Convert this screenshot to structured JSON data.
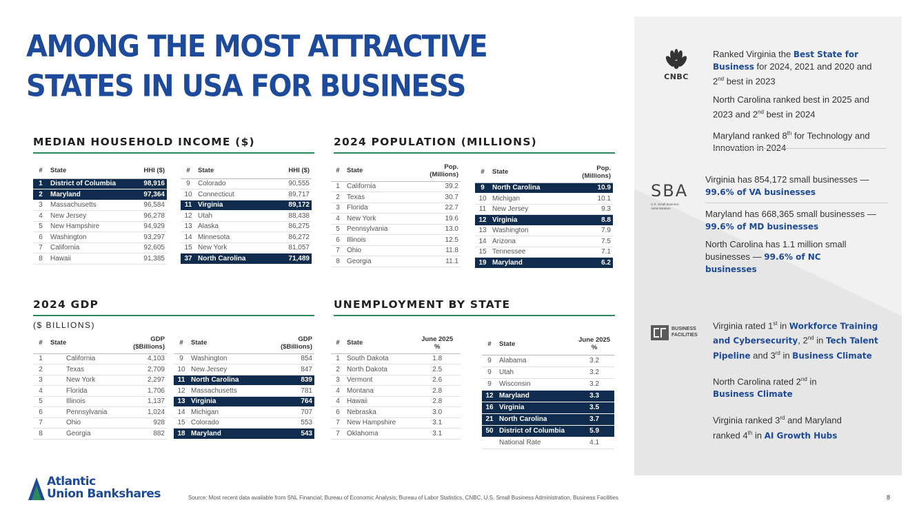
{
  "title": {
    "line1": "AMONG THE MOST ATTRACTIVE",
    "line2": "STATES IN USA FOR BUSINESS"
  },
  "sections": {
    "income": "MEDIAN HOUSEHOLD INCOME ($)",
    "population": "2024 POPULATION (MILLIONS)",
    "gdp": "2024 GDP",
    "gdp_sub": "($ BILLIONS)",
    "unemployment": "UNEMPLOYMENT BY STATE"
  },
  "income_headers": {
    "rank": "#",
    "state": "State",
    "value": "HHI ($)"
  },
  "income_left": [
    {
      "rank": "1",
      "state": "District of Columbia",
      "value": "98,916",
      "hl": true
    },
    {
      "rank": "2",
      "state": "Maryland",
      "value": "97,364",
      "hl": true
    },
    {
      "rank": "3",
      "state": "Massachusetts",
      "value": "96,584"
    },
    {
      "rank": "4",
      "state": "New Jersey",
      "value": "96,278"
    },
    {
      "rank": "5",
      "state": "New Hampshire",
      "value": "94,929"
    },
    {
      "rank": "6",
      "state": "Washington",
      "value": "93,297"
    },
    {
      "rank": "7",
      "state": "California",
      "value": "92,605"
    },
    {
      "rank": "8",
      "state": "Hawaii",
      "value": "91,385"
    }
  ],
  "income_right": [
    {
      "rank": "9",
      "state": "Colorado",
      "value": "90,555"
    },
    {
      "rank": "10",
      "state": "Connecticut",
      "value": "89,717"
    },
    {
      "rank": "11",
      "state": "Virginia",
      "value": "89,172",
      "hl": true
    },
    {
      "rank": "12",
      "state": "Utah",
      "value": "88,438"
    },
    {
      "rank": "13",
      "state": "Alaska",
      "value": "86,275"
    },
    {
      "rank": "14",
      "state": "Minnesota",
      "value": "86,272"
    },
    {
      "rank": "15",
      "state": "New York",
      "value": "81,057"
    },
    {
      "rank": "37",
      "state": "North Carolina",
      "value": "71,489",
      "hl": true
    }
  ],
  "pop_headers": {
    "rank": "#",
    "state": "State",
    "value_l1": "Pop.",
    "value_l2": "(Millions)"
  },
  "pop_left": [
    {
      "rank": "1",
      "state": "California",
      "value": "39.2"
    },
    {
      "rank": "2",
      "state": "Texas",
      "value": "30.7"
    },
    {
      "rank": "3",
      "state": "Florida",
      "value": "22.7"
    },
    {
      "rank": "4",
      "state": "New York",
      "value": "19.6"
    },
    {
      "rank": "5",
      "state": "Pennsylvania",
      "value": "13.0"
    },
    {
      "rank": "6",
      "state": "Illinois",
      "value": "12.5"
    },
    {
      "rank": "7",
      "state": "Ohio",
      "value": "11.8"
    },
    {
      "rank": "8",
      "state": "Georgia",
      "value": "11.1"
    }
  ],
  "pop_right": [
    {
      "rank": "9",
      "state": "North Carolina",
      "value": "10.9",
      "hl": true
    },
    {
      "rank": "10",
      "state": "Michigan",
      "value": "10.1"
    },
    {
      "rank": "11",
      "state": "New Jersey",
      "value": "9.3"
    },
    {
      "rank": "12",
      "state": "Virginia",
      "value": "8.8",
      "hl": true
    },
    {
      "rank": "13",
      "state": "Washington",
      "value": "7.9"
    },
    {
      "rank": "14",
      "state": "Arizona",
      "value": "7.5"
    },
    {
      "rank": "15",
      "state": "Tennessee",
      "value": "7.1"
    },
    {
      "rank": "19",
      "state": "Maryland",
      "value": "6.2",
      "hl": true
    }
  ],
  "gdp_headers": {
    "rank": "#",
    "state": "State",
    "value_l1": "GDP",
    "value_l2": "($Billions)"
  },
  "gdp_left": [
    {
      "rank": "1",
      "state": "California",
      "value": "4,103"
    },
    {
      "rank": "2",
      "state": "Texas",
      "value": "2,709"
    },
    {
      "rank": "3",
      "state": "New York",
      "value": "2,297"
    },
    {
      "rank": "4",
      "state": "Florida",
      "value": "1,706"
    },
    {
      "rank": "5",
      "state": "Illinois",
      "value": "1,137"
    },
    {
      "rank": "6",
      "state": "Pennsylvania",
      "value": "1,024"
    },
    {
      "rank": "7",
      "state": "Ohio",
      "value": "928"
    },
    {
      "rank": "8",
      "state": "Georgia",
      "value": "882"
    }
  ],
  "gdp_right": [
    {
      "rank": "9",
      "state": "Washington",
      "value": "854"
    },
    {
      "rank": "10",
      "state": "New Jersey",
      "value": "847"
    },
    {
      "rank": "11",
      "state": "North Carolina",
      "value": "839",
      "hl": true
    },
    {
      "rank": "12",
      "state": "Massachusetts",
      "value": "781"
    },
    {
      "rank": "13",
      "state": "Virginia",
      "value": "764",
      "hl": true
    },
    {
      "rank": "14",
      "state": "Michigan",
      "value": "707"
    },
    {
      "rank": "15",
      "state": "Colorado",
      "value": "553"
    },
    {
      "rank": "18",
      "state": "Maryland",
      "value": "543",
      "hl": true
    }
  ],
  "unemp_headers": {
    "rank": "#",
    "state": "State",
    "value_l1": "June 2025",
    "value_l2": "%"
  },
  "unemp_left": [
    {
      "rank": "1",
      "state": "South Dakota",
      "value": "1.8"
    },
    {
      "rank": "2",
      "state": "North Dakota",
      "value": "2.5"
    },
    {
      "rank": "3",
      "state": "Vermont",
      "value": "2.6"
    },
    {
      "rank": "4",
      "state": "Montana",
      "value": "2.8"
    },
    {
      "rank": "4",
      "state": "Hawaii",
      "value": "2.8"
    },
    {
      "rank": "6",
      "state": "Nebraska",
      "value": "3.0"
    },
    {
      "rank": "7",
      "state": "New Hampshire",
      "value": "3.1"
    },
    {
      "rank": "7",
      "state": "Oklahoma",
      "value": "3.1"
    }
  ],
  "unemp_right": [
    {
      "rank": "9",
      "state": "Alabama",
      "value": "3.2"
    },
    {
      "rank": "9",
      "state": "Utah",
      "value": "3.2"
    },
    {
      "rank": "9",
      "state": "Wisconsin",
      "value": "3.2"
    },
    {
      "rank": "12",
      "state": "Maryland",
      "value": "3.3",
      "hl": true
    },
    {
      "rank": "16",
      "state": "Virginia",
      "value": "3.5",
      "hl": true
    },
    {
      "rank": "21",
      "state": "North Carolina",
      "value": "3.7",
      "hl": true
    },
    {
      "rank": "50",
      "state": "District of Columbia",
      "value": "5.9",
      "hl": true
    },
    {
      "rank": "",
      "state": "National Rate",
      "value": "4.1"
    }
  ],
  "cnbc": {
    "logo_text": "CNBC",
    "p1_a": "Ranked Virginia the ",
    "p1_b": "Best State for Business",
    "p1_c": " for 2024, 2021 and 2020 and 2",
    "p1_sup": "nd",
    "p1_d": " best in 2023",
    "p2_a": "North Carolina ranked best in 2025 and 2023 and 2",
    "p2_sup": "nd",
    "p2_b": " best in 2024",
    "p3_a": "Maryland ranked 8",
    "p3_sup": "th",
    "p3_b": " for Technology and Innovation in 2024"
  },
  "sba": {
    "logo_text": "SBA",
    "logo_sub": "U.S. Small Business Administration",
    "p1_a": "Virginia has 854,172 small businesses — ",
    "p1_b": "99.6% of VA businesses",
    "p2_a": "Maryland has 668,365 small businesses — ",
    "p2_b": "99.6% of MD businesses",
    "p3_a": "North Carolina has 1.1 million small businesses — ",
    "p3_b": "99.6% of NC businesses"
  },
  "bf": {
    "logo_text_1": "BUSINESS",
    "logo_text_2": "FACILITIES",
    "p1_a": "Virginia rated 1",
    "p1_sup1": "st",
    "p1_b": " in ",
    "p1_c": "Workforce Training and Cybersecurity",
    "p1_d": ", 2",
    "p1_sup2": "nd",
    "p1_e": " in ",
    "p1_f": "Tech Talent Pipeline",
    "p1_g": " and 3",
    "p1_sup3": "rd",
    "p1_h": " in ",
    "p1_i": "Business Climate",
    "p2_a": "North Carolina rated 2",
    "p2_sup": "nd",
    "p2_b": " in ",
    "p2_c": "Business Climate",
    "p3_a": "Virginia ranked 3",
    "p3_sup1": "rd",
    "p3_b": " and Maryland ranked 4",
    "p3_sup2": "th",
    "p3_c": " in ",
    "p3_d": "AI Growth Hubs"
  },
  "footer": {
    "logo_line1": "Atlantic",
    "logo_line2": "Union Bankshares",
    "source": "Source: Most recent data available from SNL Financial; Bureau of Economic Analysis; Bureau of Labor Statistics, CNBC, U.S. Small Business Administration, Business Facilities",
    "page": "8"
  }
}
